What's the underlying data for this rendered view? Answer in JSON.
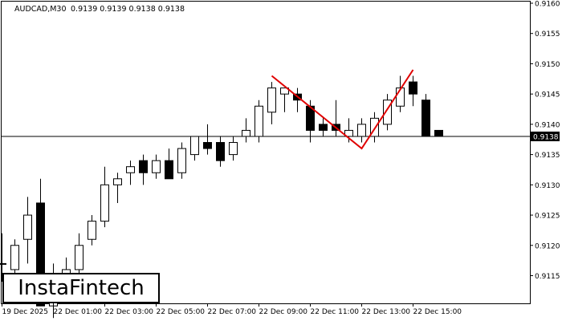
{
  "header": {
    "symbol": "AUDCAD,M30",
    "ohlc": "0.9139 0.9139 0.9138 0.9138"
  },
  "price_tag": "0.9138",
  "logo": {
    "text": "InstaFintech"
  },
  "colors": {
    "pattern_line": "#e00000",
    "bull_fill": "#ffffff",
    "bear_fill": "#000000",
    "candle_stroke": "#000000",
    "price_line": "#000000"
  },
  "chart_data": {
    "type": "candlestick",
    "title": "",
    "xlabel": "",
    "ylabel": "",
    "ylim": [
      0.911,
      0.916
    ],
    "y_ticks": [
      "0.9115",
      "0.9120",
      "0.9125",
      "0.9130",
      "0.9135",
      "0.9140",
      "0.9145",
      "0.9150",
      "0.9155",
      "0.9160"
    ],
    "x_tick_labels": [
      "19 Dec 2025",
      "22 Dec 01:00",
      "22 Dec 03:00",
      "22 Dec 05:00",
      "22 Dec 07:00",
      "22 Dec 09:00",
      "22 Dec 11:00",
      "22 Dec 13:00",
      "22 Dec 15:00"
    ],
    "current_price": 0.9138,
    "grid": false,
    "candles": [
      {
        "o": 0.9117,
        "h": 0.9122,
        "l": 0.9114,
        "c": 0.9117
      },
      {
        "o": 0.9116,
        "h": 0.9121,
        "l": 0.9114,
        "c": 0.912
      },
      {
        "o": 0.9121,
        "h": 0.9128,
        "l": 0.9117,
        "c": 0.9125
      },
      {
        "o": 0.9127,
        "h": 0.9131,
        "l": 0.911,
        "c": 0.911
      },
      {
        "o": 0.911,
        "h": 0.9117,
        "l": 0.9108,
        "c": 0.9115
      },
      {
        "o": 0.9115,
        "h": 0.9118,
        "l": 0.9111,
        "c": 0.9116
      },
      {
        "o": 0.9116,
        "h": 0.9122,
        "l": 0.9114,
        "c": 0.912
      },
      {
        "o": 0.9121,
        "h": 0.9125,
        "l": 0.912,
        "c": 0.9124
      },
      {
        "o": 0.9124,
        "h": 0.9133,
        "l": 0.9123,
        "c": 0.913
      },
      {
        "o": 0.913,
        "h": 0.9132,
        "l": 0.9127,
        "c": 0.9131
      },
      {
        "o": 0.9132,
        "h": 0.9134,
        "l": 0.913,
        "c": 0.9133
      },
      {
        "o": 0.9134,
        "h": 0.9135,
        "l": 0.913,
        "c": 0.9132
      },
      {
        "o": 0.9132,
        "h": 0.9135,
        "l": 0.9131,
        "c": 0.9134
      },
      {
        "o": 0.9134,
        "h": 0.9136,
        "l": 0.9131,
        "c": 0.9131
      },
      {
        "o": 0.9132,
        "h": 0.9137,
        "l": 0.9131,
        "c": 0.9136
      },
      {
        "o": 0.9135,
        "h": 0.9138,
        "l": 0.9134,
        "c": 0.9138
      },
      {
        "o": 0.9137,
        "h": 0.914,
        "l": 0.9135,
        "c": 0.9136
      },
      {
        "o": 0.9137,
        "h": 0.9138,
        "l": 0.9133,
        "c": 0.9134
      },
      {
        "o": 0.9135,
        "h": 0.9138,
        "l": 0.9134,
        "c": 0.9137
      },
      {
        "o": 0.9138,
        "h": 0.9141,
        "l": 0.9137,
        "c": 0.9139
      },
      {
        "o": 0.9138,
        "h": 0.9144,
        "l": 0.9137,
        "c": 0.9143
      },
      {
        "o": 0.9142,
        "h": 0.9147,
        "l": 0.914,
        "c": 0.9146
      },
      {
        "o": 0.9145,
        "h": 0.9146,
        "l": 0.9142,
        "c": 0.9146
      },
      {
        "o": 0.9145,
        "h": 0.9146,
        "l": 0.9142,
        "c": 0.9144
      },
      {
        "o": 0.9143,
        "h": 0.9144,
        "l": 0.9137,
        "c": 0.9139
      },
      {
        "o": 0.914,
        "h": 0.9141,
        "l": 0.9138,
        "c": 0.9139
      },
      {
        "o": 0.914,
        "h": 0.9144,
        "l": 0.9138,
        "c": 0.9139
      },
      {
        "o": 0.9138,
        "h": 0.9141,
        "l": 0.9137,
        "c": 0.9139
      },
      {
        "o": 0.9138,
        "h": 0.9141,
        "l": 0.9137,
        "c": 0.914
      },
      {
        "o": 0.9138,
        "h": 0.9142,
        "l": 0.9137,
        "c": 0.9141
      },
      {
        "o": 0.914,
        "h": 0.9145,
        "l": 0.9139,
        "c": 0.9144
      },
      {
        "o": 0.9143,
        "h": 0.9148,
        "l": 0.9142,
        "c": 0.9146
      },
      {
        "o": 0.9147,
        "h": 0.9148,
        "l": 0.9143,
        "c": 0.9145
      },
      {
        "o": 0.9144,
        "h": 0.9145,
        "l": 0.9138,
        "c": 0.9138
      },
      {
        "o": 0.9139,
        "h": 0.9139,
        "l": 0.9138,
        "c": 0.9138
      }
    ],
    "pattern_points": [
      {
        "candle": 21,
        "price": 0.9148
      },
      {
        "candle": 28,
        "price": 0.9136
      },
      {
        "candle": 32,
        "price": 0.9149
      }
    ]
  }
}
